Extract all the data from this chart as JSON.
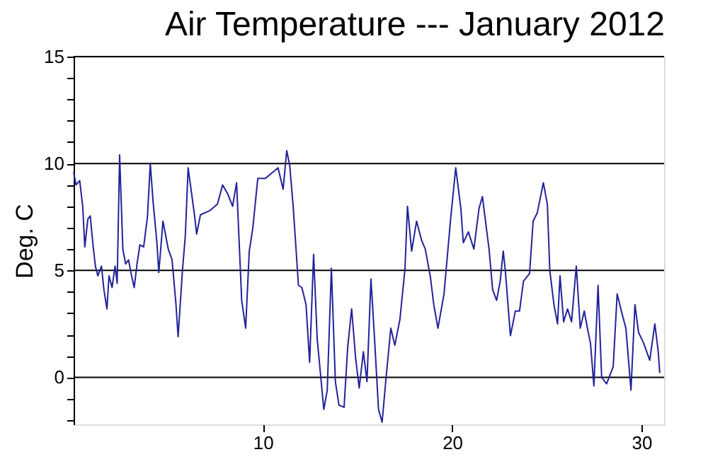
{
  "chart_data": {
    "type": "line",
    "title": "Air Temperature --- January 2012",
    "ylabel": "Deg. C",
    "x": [
      0,
      0.13,
      0.32,
      0.48,
      0.59,
      0.75,
      0.88,
      1.01,
      1.15,
      1.28,
      1.47,
      1.6,
      1.76,
      1.87,
      2.03,
      2.19,
      2.3,
      2.43,
      2.6,
      2.75,
      2.9,
      3.05,
      3.2,
      3.35,
      3.5,
      3.7,
      3.9,
      4.05,
      4.2,
      4.4,
      4.5,
      4.72,
      5.0,
      5.2,
      5.4,
      5.52,
      5.75,
      5.9,
      6.05,
      6.4,
      6.5,
      6.7,
      7.2,
      7.6,
      7.87,
      8.13,
      8.4,
      8.61,
      8.88,
      9.09,
      9.28,
      9.47,
      9.73,
      10.13,
      10.8,
      11.07,
      11.26,
      11.42,
      11.6,
      11.88,
      12.06,
      12.28,
      12.47,
      12.68,
      12.87,
      13.22,
      13.4,
      13.62,
      13.83,
      14.02,
      14.29,
      14.48,
      14.69,
      14.9,
      15.09,
      15.31,
      15.5,
      15.71,
      15.9,
      16.11,
      16.3,
      16.51,
      16.76,
      16.97,
      17.24,
      17.51,
      17.64,
      17.86,
      18.12,
      18.39,
      18.58,
      18.85,
      19.03,
      19.25,
      19.57,
      19.92,
      20.19,
      20.46,
      20.59,
      20.86,
      21.15,
      21.42,
      21.6,
      21.95,
      22.14,
      22.35,
      22.54,
      22.7,
      22.81,
      23.08,
      23.34,
      23.56,
      23.77,
      24.09,
      24.28,
      24.5,
      24.82,
      25.03,
      25.16,
      25.38,
      25.57,
      25.7,
      25.89,
      26.1,
      26.31,
      26.56,
      26.77,
      26.98,
      27.17,
      27.31,
      27.49,
      27.71,
      27.9,
      28.16,
      28.51,
      28.72,
      28.97,
      29.18,
      29.45,
      29.66,
      29.85,
      30.12,
      30.44,
      30.71,
      30.89,
      30.97
    ],
    "series": [
      {
        "color": "#22229a",
        "values": [
          9.6,
          9.0,
          9.2,
          8.0,
          6.1,
          7.4,
          7.55,
          6.3,
          5.2,
          4.75,
          5.2,
          4.1,
          3.2,
          4.75,
          4.2,
          5.2,
          4.4,
          10.4,
          6.0,
          5.3,
          5.5,
          4.8,
          4.2,
          5.3,
          6.2,
          6.1,
          7.5,
          10.0,
          8.2,
          6.3,
          4.9,
          7.3,
          6.0,
          5.5,
          3.5,
          1.9,
          5.0,
          6.6,
          9.8,
          7.5,
          6.7,
          7.6,
          7.8,
          8.1,
          9.0,
          8.6,
          8.0,
          9.1,
          3.6,
          2.3,
          5.9,
          7.0,
          9.3,
          9.3,
          9.8,
          8.8,
          10.6,
          9.9,
          8.0,
          4.3,
          4.2,
          3.4,
          0.7,
          5.75,
          1.8,
          -1.5,
          -0.6,
          5.1,
          -0.2,
          -1.3,
          -1.4,
          1.4,
          3.2,
          0.9,
          -0.5,
          1.2,
          -0.2,
          4.6,
          1.8,
          -1.5,
          -2.1,
          0.0,
          2.3,
          1.5,
          2.7,
          5.1,
          8.0,
          5.9,
          7.3,
          6.4,
          6.0,
          4.7,
          3.4,
          2.3,
          3.9,
          7.4,
          9.8,
          7.9,
          6.3,
          6.8,
          6.0,
          7.9,
          8.45,
          6.0,
          4.1,
          3.6,
          4.5,
          5.9,
          5.0,
          1.95,
          3.1,
          3.1,
          4.5,
          4.85,
          7.3,
          7.7,
          9.1,
          8.1,
          5.0,
          3.4,
          2.5,
          4.75,
          2.6,
          3.2,
          2.6,
          5.2,
          2.3,
          3.1,
          2.2,
          1.6,
          -0.4,
          4.3,
          0.0,
          -0.3,
          0.5,
          3.9,
          3.0,
          2.3,
          -0.6,
          3.4,
          2.1,
          1.6,
          0.8,
          2.5,
          1.2,
          0.2
        ]
      }
    ],
    "xlim": [
      0,
      31.2
    ],
    "xticks": [
      10,
      20,
      30
    ],
    "ylim": [
      -2.2,
      15
    ],
    "yticks": [
      {
        "value": -2,
        "label": null
      },
      {
        "value": -1,
        "label": null
      },
      0,
      {
        "value": 1,
        "label": null
      },
      {
        "value": 2,
        "label": null
      },
      {
        "value": 3,
        "label": null
      },
      {
        "value": 4,
        "label": null
      },
      5,
      {
        "value": 6,
        "label": null
      },
      {
        "value": 7,
        "label": null
      },
      {
        "value": 8,
        "label": null
      },
      {
        "value": 9,
        "label": null
      },
      10,
      {
        "value": 11,
        "label": null
      },
      {
        "value": 12,
        "label": null
      },
      {
        "value": 13,
        "label": null
      },
      {
        "value": 14,
        "label": null
      },
      15
    ],
    "grid": "y",
    "legend": false,
    "marker": "none",
    "line_style": "solid"
  }
}
